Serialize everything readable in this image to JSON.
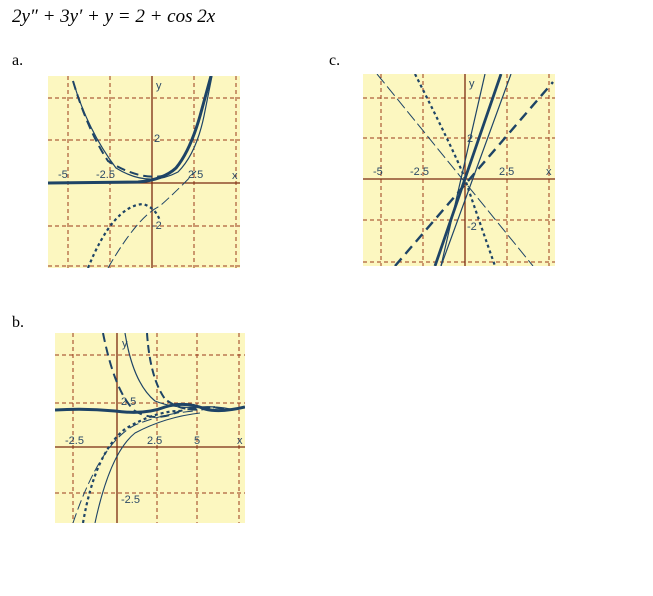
{
  "equation": "2y″ + 3y′ + y = 2 + cos 2x",
  "options": {
    "a": {
      "label": "a.",
      "tick_labels": {
        "x_neg5": "-5",
        "x_neg25": "-2.5",
        "x_pos25": "2.5",
        "y_pos2": "2",
        "y_neg2": "-2",
        "x_axis": "x",
        "y_axis": "y"
      }
    },
    "b": {
      "label": "b.",
      "tick_labels": {
        "x_neg25": "-2.5",
        "x_pos25": "2.5",
        "x_pos5": "5",
        "y_pos25": "2.5",
        "y_neg25": "-2.5",
        "x_axis": "x",
        "y_axis": "y"
      }
    },
    "c": {
      "label": "c.",
      "tick_labels": {
        "x_neg5": "-5",
        "x_neg25": "-2.5",
        "x_pos25": "2.5",
        "y_pos2": "2",
        "y_neg2": "-2",
        "x_axis": "x",
        "y_axis": "y"
      }
    }
  },
  "colors": {
    "plot_background": "#fcf7c0",
    "grid": "#9a3a1a",
    "axis": "#7a2a10",
    "curve": "#1e4466"
  }
}
